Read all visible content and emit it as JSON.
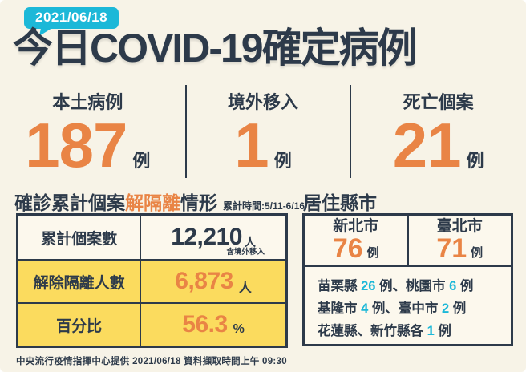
{
  "page": {
    "date_badge": "2021/06/18",
    "title": "今日COVID-19確定病例",
    "footer": "中央流行疫情指揮中心提供 2021/06/18 資料擷取時間上午 09:30"
  },
  "stats": [
    {
      "label": "本土病例",
      "value": "187",
      "unit": "例"
    },
    {
      "label": "境外移入",
      "value": "1",
      "unit": "例"
    },
    {
      "label": "死亡個案",
      "value": "21",
      "unit": "例"
    }
  ],
  "isolation": {
    "title_prefix": "確診累計個案",
    "title_highlight": "解隔離",
    "title_suffix": "情形",
    "period_note": "累計時間:5/11-6/16",
    "rows": [
      {
        "label": "累計個案數",
        "value": "12,210",
        "unit": "人",
        "note": "含境外移入"
      },
      {
        "label": "解除隔離人數",
        "value": "6,873",
        "unit": "人"
      },
      {
        "label": "百分比",
        "value": "56.3",
        "unit": "%"
      }
    ]
  },
  "residence": {
    "title": "居住縣市",
    "cities": [
      {
        "name": "新北市",
        "value": "76",
        "unit": "例"
      },
      {
        "name": "臺北市",
        "value": "71",
        "unit": "例"
      }
    ],
    "other_lines": [
      {
        "segments": [
          {
            "text": "苗栗縣 ",
            "accent": false
          },
          {
            "text": "26",
            "accent": true
          },
          {
            "text": " 例、桃園市 ",
            "accent": false
          },
          {
            "text": "6",
            "accent": true
          },
          {
            "text": " 例",
            "accent": false
          }
        ]
      },
      {
        "segments": [
          {
            "text": "基隆市 ",
            "accent": false
          },
          {
            "text": "4",
            "accent": true
          },
          {
            "text": " 例、臺中市 ",
            "accent": false
          },
          {
            "text": "2",
            "accent": true
          },
          {
            "text": " 例",
            "accent": false
          }
        ]
      },
      {
        "segments": [
          {
            "text": "花蓮縣、新竹縣各 ",
            "accent": false
          },
          {
            "text": "1",
            "accent": true
          },
          {
            "text": " 例",
            "accent": false
          }
        ]
      }
    ]
  },
  "colors": {
    "background": "#f7f3e7",
    "dark_navy": "#2d3a4a",
    "orange": "#e98445",
    "cyan": "#1cb8d8",
    "yellow": "#fbdb5e",
    "row_light": "#fcf8ed"
  }
}
